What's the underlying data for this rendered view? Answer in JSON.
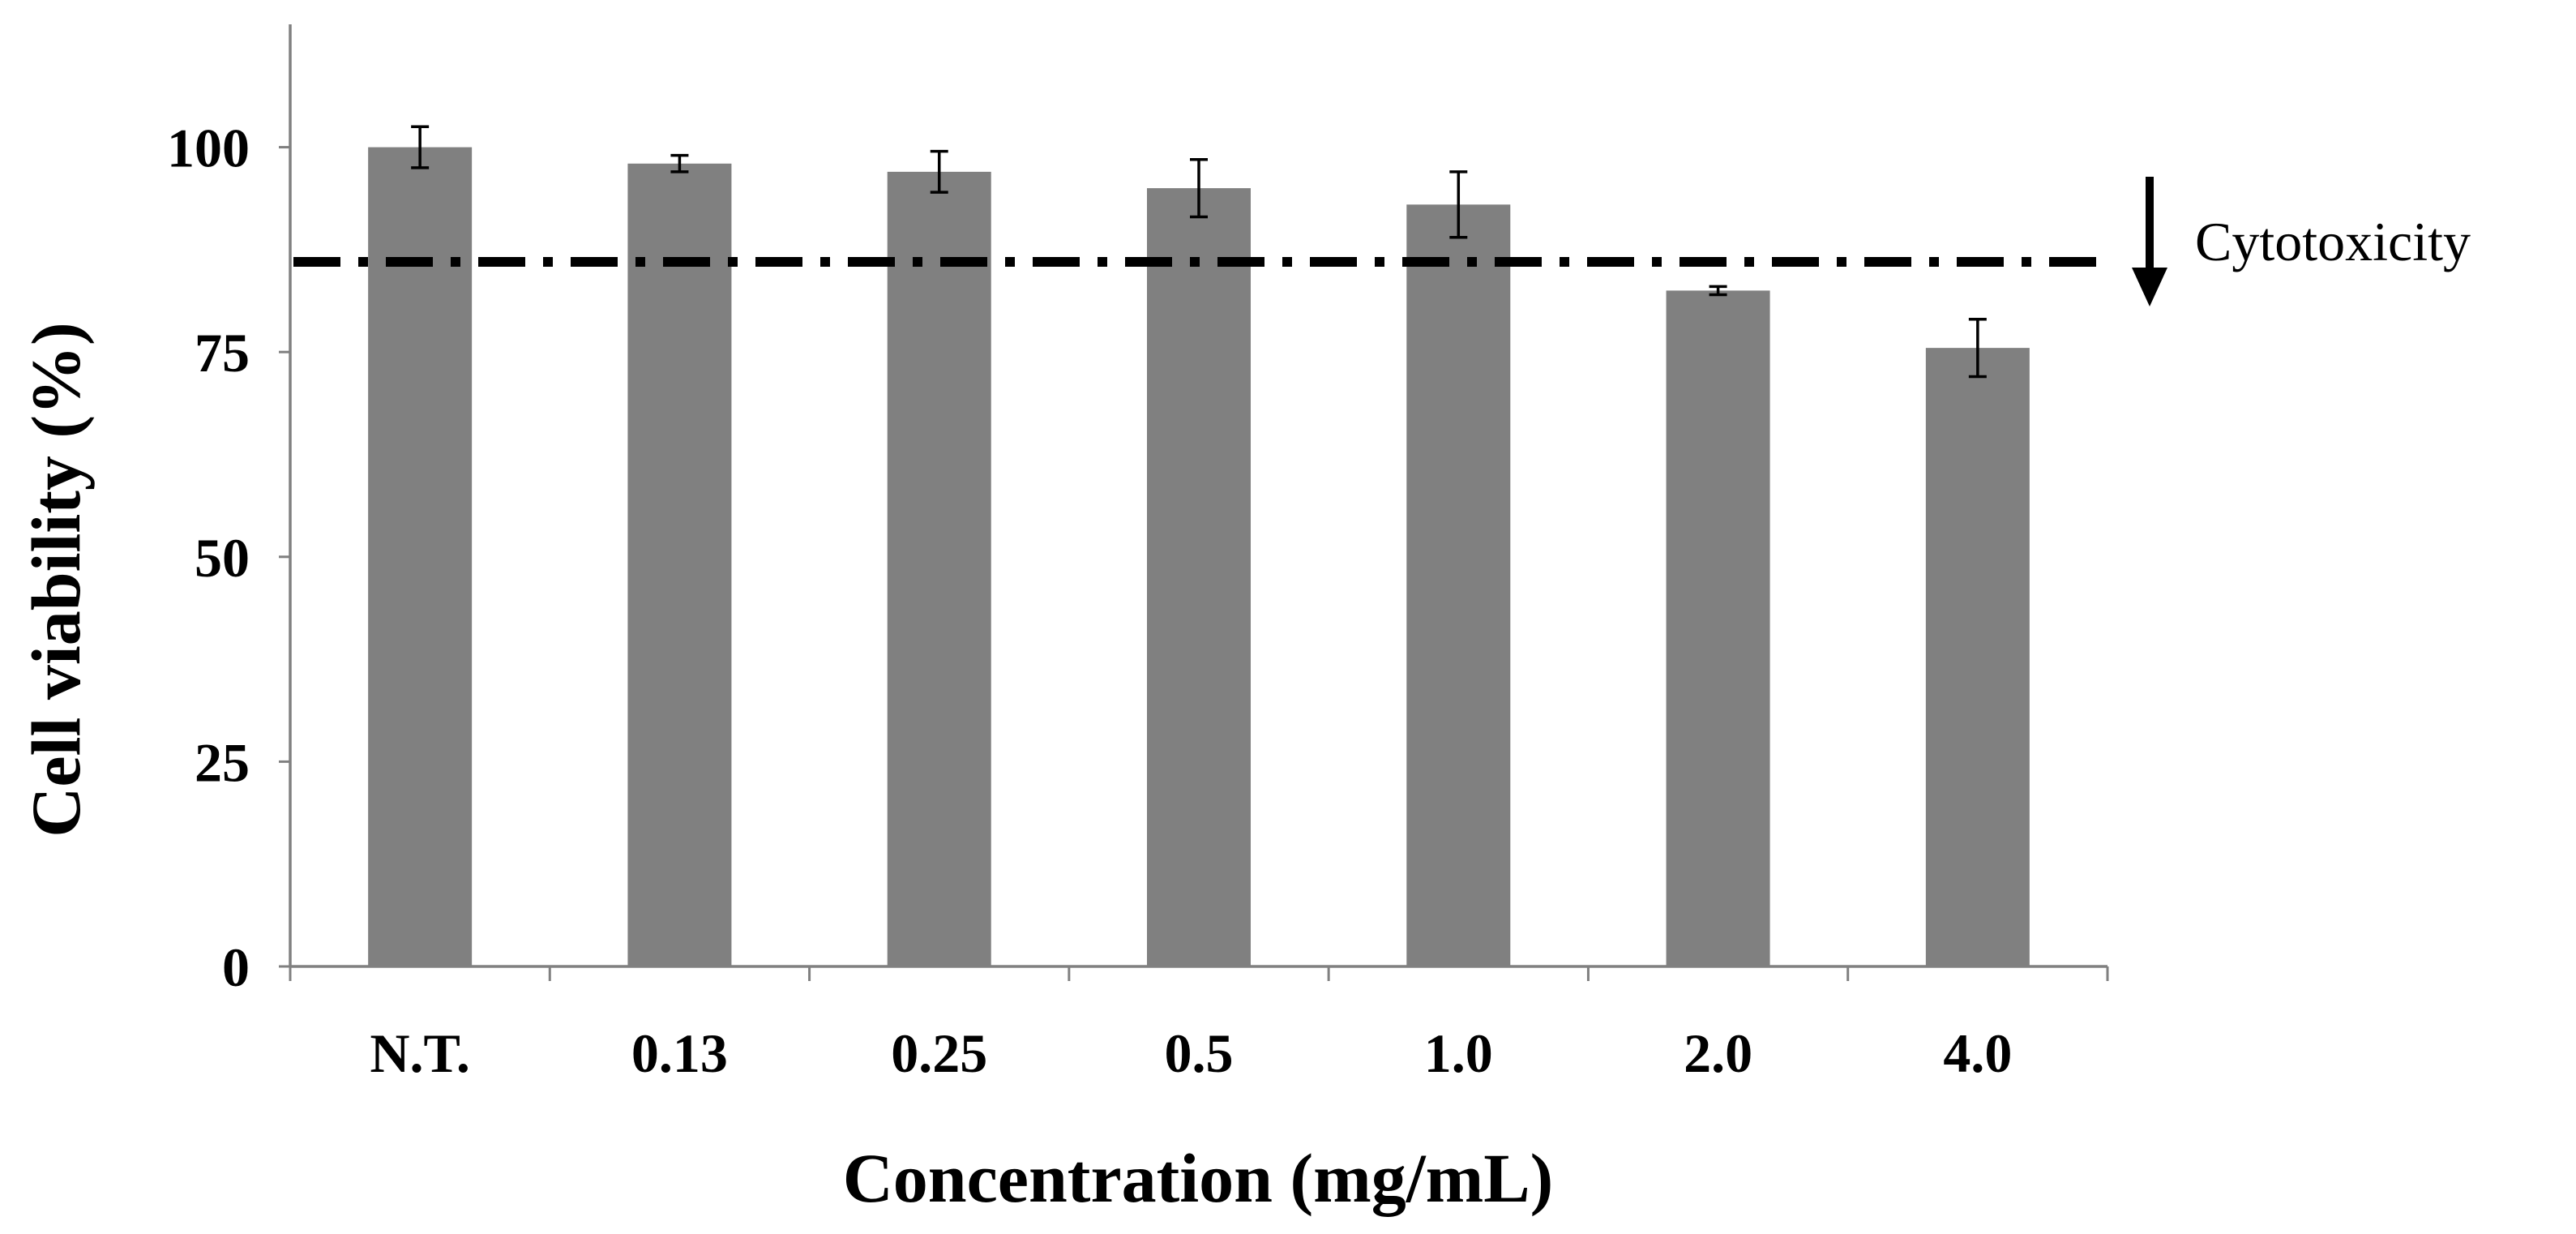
{
  "chart_data": {
    "type": "bar",
    "title": "",
    "xlabel": "Concentration (mg/mL)",
    "ylabel": "Cell viability (%)",
    "categories": [
      "N.T.",
      "0.13",
      "0.25",
      "0.5",
      "1.0",
      "2.0",
      "4.0"
    ],
    "values": [
      100,
      98,
      97,
      95,
      93,
      82.5,
      75.5
    ],
    "errors": [
      2.5,
      1,
      2.5,
      3.5,
      4,
      0.5,
      3.5
    ],
    "ylim": [
      0,
      115
    ],
    "yticks": [
      0,
      25,
      50,
      75,
      100
    ],
    "threshold": {
      "value": 86,
      "label": "Cytotoxicity"
    },
    "colors": {
      "bar": "#808080",
      "axis": "#808080",
      "text": "#000000"
    }
  }
}
